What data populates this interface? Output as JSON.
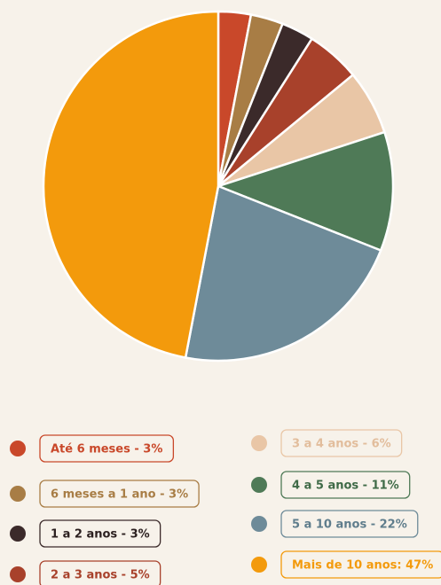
{
  "chart_data": {
    "type": "pie",
    "categories": [
      "Até 6 meses - 3%",
      "6 meses a 1 ano - 3%",
      "1 a 2 anos - 3%",
      "2 a 3 anos - 5%",
      "3 a 4 anos - 6%",
      "4 a 5 anos - 11%",
      "5 a 10 anos - 22%",
      "Mais de 10 anos: 47%"
    ],
    "values": [
      3,
      3,
      3,
      5,
      6,
      11,
      22,
      47
    ],
    "colors": [
      "#c9482a",
      "#a87d45",
      "#3b2a2a",
      "#a8412b",
      "#e9c6a6",
      "#4f7a57",
      "#6e8b99",
      "#f39a0c"
    ]
  }
}
